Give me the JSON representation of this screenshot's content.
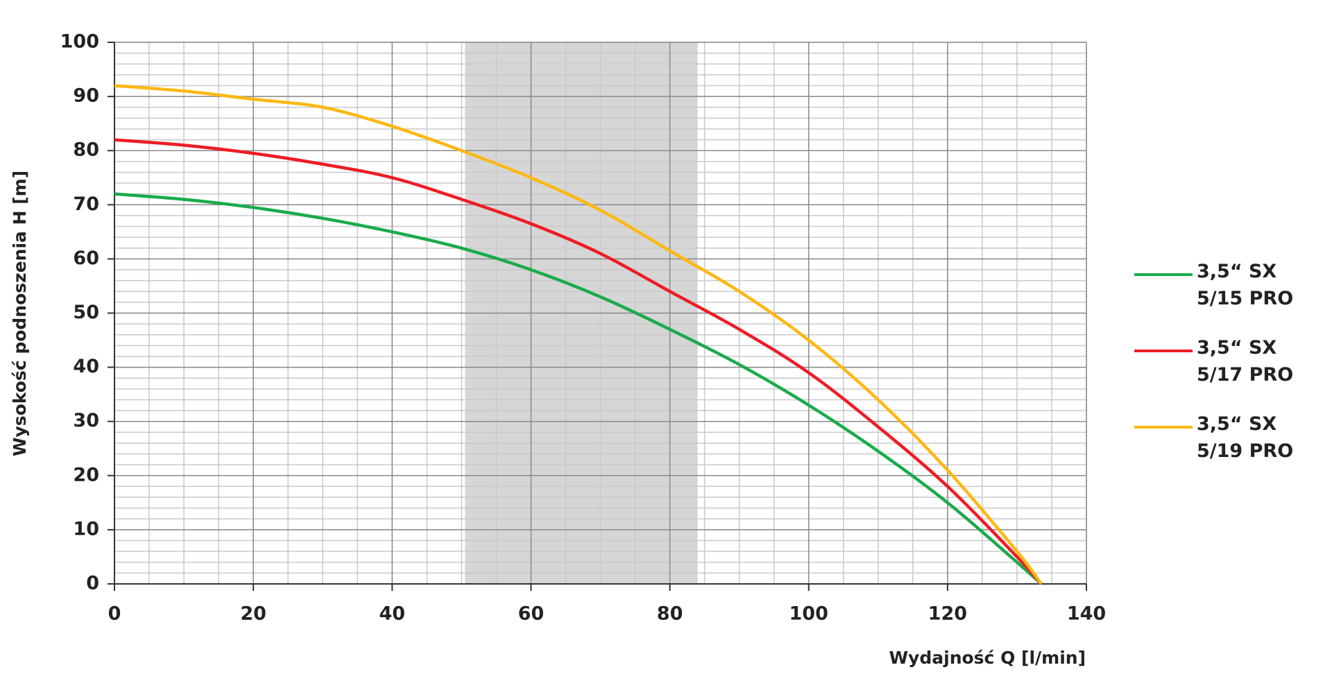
{
  "chart_data": {
    "type": "line",
    "x_label": "Wydajność Q [l/min]",
    "y_label": "Wysokość podnoszenia H [m]",
    "xlim": [
      0,
      140
    ],
    "ylim": [
      0,
      100
    ],
    "xticks": [
      0,
      20,
      40,
      60,
      80,
      100,
      120,
      140
    ],
    "yticks": [
      0,
      10,
      20,
      30,
      40,
      50,
      60,
      70,
      80,
      90,
      100
    ],
    "grid": true,
    "minor_grid": {
      "x": 5,
      "y": 2
    },
    "shaded_region": [
      50.5,
      84
    ],
    "shaded_color": "#d6d6d6",
    "legend": "right",
    "x": [
      0,
      10,
      20,
      30,
      40,
      50,
      60,
      70,
      80,
      90,
      100,
      110,
      120,
      130,
      133.5
    ],
    "series": [
      {
        "name": "3,5“ SX 5/15 PRO",
        "color": "#1aab4b",
        "values": [
          72,
          71,
          69.5,
          67.5,
          65,
          62,
          58,
          53,
          47,
          40.5,
          33,
          24.5,
          15,
          4,
          0
        ]
      },
      {
        "name": "3,5“ SX 5/17 PRO",
        "color": "#ee1c25",
        "values": [
          82,
          81,
          79.5,
          77.5,
          75,
          71,
          66.5,
          61,
          54,
          47,
          39,
          29,
          18,
          5,
          0
        ]
      },
      {
        "name": "3,5“ SX 5/19 PRO",
        "color": "#fcb813",
        "values": [
          92,
          91,
          89.5,
          88,
          84.5,
          80,
          75,
          69,
          61.5,
          54,
          45,
          34,
          21,
          6,
          0
        ]
      }
    ]
  }
}
